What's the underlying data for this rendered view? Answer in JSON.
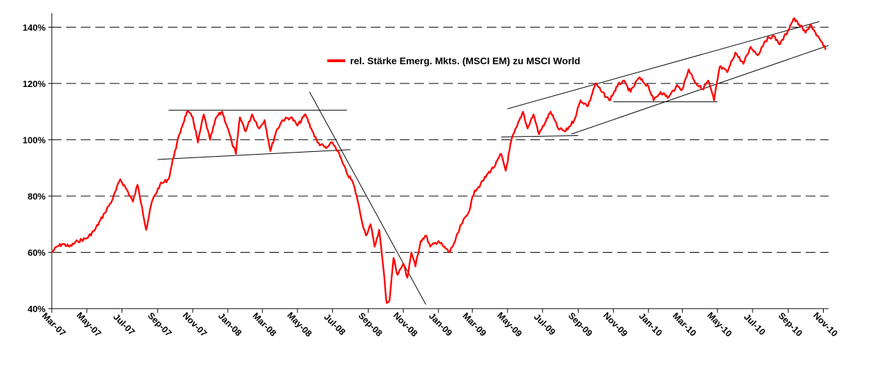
{
  "chart_data": {
    "type": "line",
    "title": "",
    "xlabel": "",
    "ylabel": "",
    "ylim": [
      40,
      145
    ],
    "y_ticks": [
      "40%",
      "60%",
      "80%",
      "100%",
      "120%",
      "140%"
    ],
    "y_tick_values": [
      40,
      60,
      80,
      100,
      120,
      140
    ],
    "grid": "horizontal dashed",
    "x_range": [
      "2007-03-01",
      "2010-11-05"
    ],
    "x_ticks": [
      "Mar-07",
      "May-07",
      "Jul-07",
      "Sep-07",
      "Nov-07",
      "Jan-08",
      "Mar-08",
      "May-08",
      "Jul-08",
      "Sep-08",
      "Nov-08",
      "Jan-09",
      "Mar-09",
      "May-09",
      "Jul-09",
      "Sep-09",
      "Nov-09",
      "Jan-10",
      "Mar-10",
      "May-10",
      "Jul-10",
      "Sep-10",
      "Nov-10"
    ],
    "x_tick_dates": [
      "2007-03-01",
      "2007-05-01",
      "2007-07-01",
      "2007-09-01",
      "2007-11-01",
      "2008-01-01",
      "2008-03-01",
      "2008-05-01",
      "2008-07-01",
      "2008-09-01",
      "2008-11-01",
      "2009-01-01",
      "2009-03-01",
      "2009-05-01",
      "2009-07-01",
      "2009-09-01",
      "2009-11-01",
      "2010-01-01",
      "2010-03-01",
      "2010-05-01",
      "2010-07-01",
      "2010-09-01",
      "2010-11-01"
    ],
    "legend": {
      "position": "top-center",
      "label": "rel. Stärke Emerg. Mkts. (MSCI EM) zu MSCI World"
    },
    "series": [
      {
        "name": "rel. Stärke Emerg. Mkts. (MSCI EM) zu MSCI World",
        "color": "#ff0000",
        "points": [
          [
            "2007-03-01",
            60
          ],
          [
            "2007-03-10",
            62
          ],
          [
            "2007-03-20",
            63
          ],
          [
            "2007-04-01",
            62
          ],
          [
            "2007-04-15",
            64
          ],
          [
            "2007-05-01",
            65
          ],
          [
            "2007-05-15",
            68
          ],
          [
            "2007-06-01",
            74
          ],
          [
            "2007-06-15",
            79
          ],
          [
            "2007-06-28",
            86
          ],
          [
            "2007-07-10",
            82
          ],
          [
            "2007-07-20",
            78
          ],
          [
            "2007-07-28",
            84
          ],
          [
            "2007-08-05",
            76
          ],
          [
            "2007-08-12",
            68
          ],
          [
            "2007-08-22",
            78
          ],
          [
            "2007-09-05",
            84
          ],
          [
            "2007-09-20",
            86
          ],
          [
            "2007-10-01",
            96
          ],
          [
            "2007-10-12",
            104
          ],
          [
            "2007-10-22",
            110
          ],
          [
            "2007-11-01",
            108
          ],
          [
            "2007-11-10",
            99
          ],
          [
            "2007-11-20",
            109
          ],
          [
            "2007-12-01",
            100
          ],
          [
            "2007-12-12",
            108
          ],
          [
            "2007-12-22",
            110
          ],
          [
            "2008-01-01",
            104
          ],
          [
            "2008-01-08",
            99
          ],
          [
            "2008-01-15",
            95
          ],
          [
            "2008-01-22",
            108
          ],
          [
            "2008-02-01",
            103
          ],
          [
            "2008-02-12",
            109
          ],
          [
            "2008-02-25",
            104
          ],
          [
            "2008-03-05",
            107
          ],
          [
            "2008-03-15",
            96
          ],
          [
            "2008-03-25",
            103
          ],
          [
            "2008-04-05",
            107
          ],
          [
            "2008-04-20",
            108
          ],
          [
            "2008-05-01",
            105
          ],
          [
            "2008-05-15",
            109
          ],
          [
            "2008-05-25",
            104
          ],
          [
            "2008-06-05",
            99
          ],
          [
            "2008-06-20",
            97
          ],
          [
            "2008-07-01",
            99
          ],
          [
            "2008-07-10",
            96
          ],
          [
            "2008-07-18",
            92
          ],
          [
            "2008-07-26",
            88
          ],
          [
            "2008-08-05",
            85
          ],
          [
            "2008-08-12",
            80
          ],
          [
            "2008-08-20",
            72
          ],
          [
            "2008-08-28",
            66
          ],
          [
            "2008-09-05",
            70
          ],
          [
            "2008-09-12",
            62
          ],
          [
            "2008-09-20",
            68
          ],
          [
            "2008-09-27",
            55
          ],
          [
            "2008-10-03",
            42
          ],
          [
            "2008-10-08",
            43
          ],
          [
            "2008-10-15",
            58
          ],
          [
            "2008-10-22",
            52
          ],
          [
            "2008-11-01",
            56
          ],
          [
            "2008-11-08",
            51
          ],
          [
            "2008-11-15",
            60
          ],
          [
            "2008-11-22",
            55
          ],
          [
            "2008-12-01",
            64
          ],
          [
            "2008-12-10",
            66
          ],
          [
            "2008-12-18",
            62
          ],
          [
            "2009-01-01",
            64
          ],
          [
            "2009-01-10",
            62
          ],
          [
            "2009-01-20",
            60
          ],
          [
            "2009-01-30",
            64
          ],
          [
            "2009-02-10",
            70
          ],
          [
            "2009-02-22",
            74
          ],
          [
            "2009-03-05",
            82
          ],
          [
            "2009-03-15",
            84
          ],
          [
            "2009-03-28",
            88
          ],
          [
            "2009-04-10",
            91
          ],
          [
            "2009-04-20",
            95
          ],
          [
            "2009-04-28",
            89
          ],
          [
            "2009-05-08",
            100
          ],
          [
            "2009-05-18",
            105
          ],
          [
            "2009-05-28",
            110
          ],
          [
            "2009-06-05",
            104
          ],
          [
            "2009-06-15",
            109
          ],
          [
            "2009-06-25",
            102
          ],
          [
            "2009-07-05",
            106
          ],
          [
            "2009-07-15",
            110
          ],
          [
            "2009-07-28",
            104
          ],
          [
            "2009-08-10",
            103
          ],
          [
            "2009-08-25",
            107
          ],
          [
            "2009-09-05",
            114
          ],
          [
            "2009-09-18",
            112
          ],
          [
            "2009-10-01",
            120
          ],
          [
            "2009-10-12",
            117
          ],
          [
            "2009-10-25",
            114
          ],
          [
            "2009-11-08",
            119
          ],
          [
            "2009-11-18",
            121
          ],
          [
            "2009-12-01",
            117
          ],
          [
            "2009-12-15",
            122
          ],
          [
            "2010-01-01",
            119
          ],
          [
            "2010-01-10",
            114
          ],
          [
            "2010-01-22",
            117
          ],
          [
            "2010-02-05",
            115
          ],
          [
            "2010-02-18",
            119
          ],
          [
            "2010-03-01",
            118
          ],
          [
            "2010-03-12",
            125
          ],
          [
            "2010-03-25",
            120
          ],
          [
            "2010-04-05",
            118
          ],
          [
            "2010-04-15",
            121
          ],
          [
            "2010-04-25",
            114
          ],
          [
            "2010-05-05",
            126
          ],
          [
            "2010-05-18",
            124
          ],
          [
            "2010-06-01",
            131
          ],
          [
            "2010-06-15",
            127
          ],
          [
            "2010-06-28",
            133
          ],
          [
            "2010-07-10",
            130
          ],
          [
            "2010-07-22",
            135
          ],
          [
            "2010-08-05",
            137
          ],
          [
            "2010-08-18",
            134
          ],
          [
            "2010-09-01",
            139
          ],
          [
            "2010-09-10",
            143
          ],
          [
            "2010-09-20",
            141
          ],
          [
            "2010-10-01",
            138
          ],
          [
            "2010-10-10",
            141
          ],
          [
            "2010-10-20",
            137
          ],
          [
            "2010-10-28",
            135
          ],
          [
            "2010-11-05",
            132
          ]
        ]
      }
    ],
    "trendlines": [
      {
        "color": "#000000",
        "points": [
          [
            "2007-09-20",
            110.5
          ],
          [
            "2008-07-26",
            110.5
          ]
        ]
      },
      {
        "color": "#000000",
        "points": [
          [
            "2007-09-01",
            93
          ],
          [
            "2008-08-01",
            96.5
          ]
        ]
      },
      {
        "color": "#000000",
        "points": [
          [
            "2008-05-22",
            117
          ],
          [
            "2008-12-10",
            41.5
          ]
        ]
      },
      {
        "color": "#000000",
        "points": [
          [
            "2009-04-20",
            101
          ],
          [
            "2009-09-01",
            101.5
          ]
        ]
      },
      {
        "color": "#000000",
        "points": [
          [
            "2009-05-01",
            111
          ],
          [
            "2010-10-25",
            142
          ]
        ]
      },
      {
        "color": "#000000",
        "points": [
          [
            "2009-08-20",
            102
          ],
          [
            "2010-11-10",
            133.5
          ]
        ]
      },
      {
        "color": "#000000",
        "points": [
          [
            "2009-11-01",
            113.5
          ],
          [
            "2010-05-01",
            113.5
          ]
        ]
      }
    ]
  }
}
